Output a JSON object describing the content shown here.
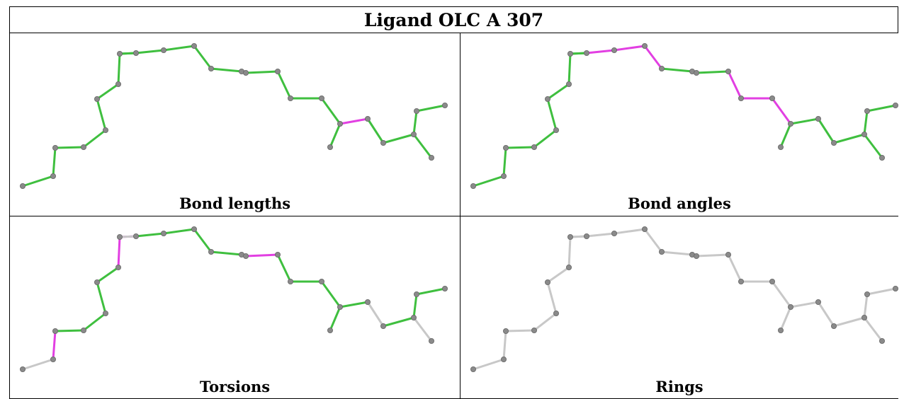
{
  "title": "Ligand OLC A 307",
  "panels": [
    {
      "caption": "Bond lengths",
      "bonds": [
        "g",
        "g",
        "g",
        "g",
        "g",
        "g",
        "g",
        "g",
        "g",
        "g",
        "g",
        "g",
        "g",
        "g",
        "g",
        "g",
        "g",
        "g",
        "m",
        "g",
        "g",
        "g",
        "g",
        "g",
        "g"
      ]
    },
    {
      "caption": "Bond angles",
      "bonds": [
        "g",
        "g",
        "g",
        "g",
        "g",
        "g",
        "g",
        "g",
        "m",
        "m",
        "m",
        "g",
        "g",
        "g",
        "m",
        "m",
        "m",
        "g",
        "g",
        "g",
        "g",
        "g",
        "g",
        "g",
        "g"
      ]
    },
    {
      "caption": "Torsions",
      "bonds": [
        "x",
        "m",
        "g",
        "g",
        "g",
        "g",
        "m",
        "m",
        "g",
        "g",
        "g",
        "g",
        "m",
        "m",
        "g",
        "g",
        "g",
        "g",
        "g",
        "x",
        "g",
        "g",
        "g",
        "x",
        "x"
      ]
    },
    {
      "caption": "Rings",
      "bonds": [
        "x",
        "x",
        "x",
        "x",
        "x",
        "x",
        "x",
        "x",
        "x",
        "x",
        "x",
        "x",
        "x",
        "x",
        "x",
        "x",
        "x",
        "x",
        "x",
        "x",
        "x",
        "x",
        "x",
        "x",
        "x"
      ]
    }
  ],
  "colors": {
    "g": "#3fbf3f",
    "m": "#e23fe2",
    "x": "#c8c8c8",
    "atom": "#8a8a8a",
    "atom_edge": "#666666"
  }
}
